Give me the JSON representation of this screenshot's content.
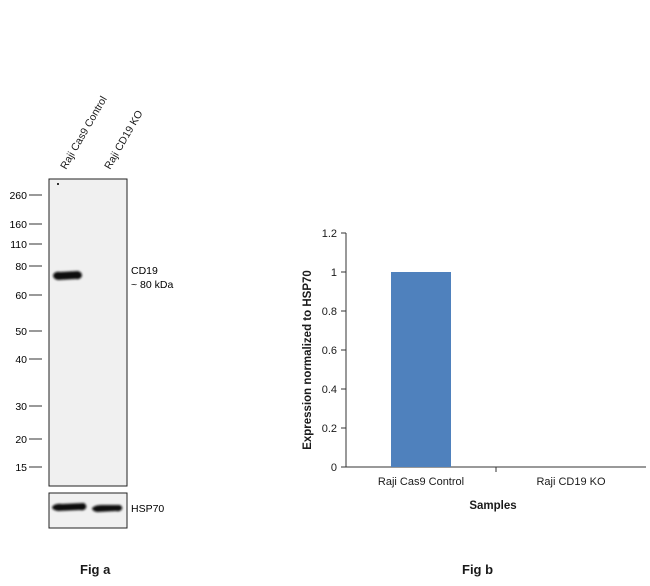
{
  "figure_a": {
    "caption": "Fig a",
    "lanes": [
      "Raji Cas9 Control",
      "Raji CD19  KO"
    ],
    "markers": [
      "260",
      "160",
      "110",
      "80",
      "60",
      "50",
      "40",
      "30",
      "20",
      "15"
    ],
    "band_label": "CD19",
    "band_size": "~ 80 kDa",
    "loading_control": "HSP70"
  },
  "figure_b": {
    "caption": "Fig b"
  },
  "chart_data": {
    "type": "bar",
    "categories": [
      "Raji Cas9 Control",
      "Raji CD19  KO"
    ],
    "values": [
      1,
      0
    ],
    "xlabel": "Samples",
    "ylabel": "Expression normalized to HSP70",
    "ylim": [
      0,
      1.2
    ],
    "yticks": [
      "0",
      "0.2",
      "0.4",
      "0.6",
      "0.8",
      "1",
      "1.2"
    ],
    "bar_color": "#4f81bd",
    "grid": false,
    "legend": "none"
  }
}
